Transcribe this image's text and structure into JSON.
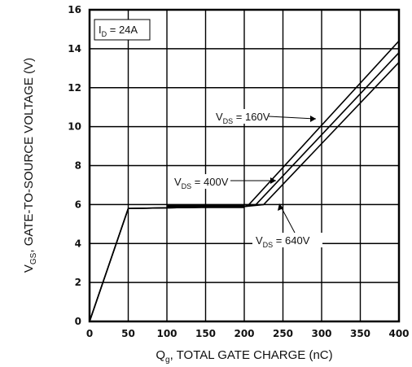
{
  "chart_data": {
    "type": "line",
    "xlabel": {
      "main": "Q",
      "sub": "g",
      "rest": ", TOTAL GATE CHARGE (nC)"
    },
    "ylabel": {
      "main": "V",
      "sub": "GS",
      "rest": ", GATE-TO-SOURCE  VOLTAGE (V)"
    },
    "xlim": [
      0,
      400
    ],
    "ylim": [
      0,
      16
    ],
    "xticks": [
      0,
      50,
      100,
      150,
      200,
      250,
      300,
      350,
      400
    ],
    "yticks": [
      0,
      2,
      4,
      6,
      8,
      10,
      12,
      14,
      16
    ],
    "grid": true,
    "condition": {
      "main": "I",
      "sub": "D",
      "rest": " = 24A"
    },
    "series": [
      {
        "name": {
          "main": "V",
          "sub": "DS",
          "rest": " = 160V"
        },
        "x": [
          0,
          50,
          200,
          206,
          400
        ],
        "y": [
          0,
          5.8,
          5.9,
          6.0,
          14.4
        ]
      },
      {
        "name": {
          "main": "V",
          "sub": "DS",
          "rest": " = 400V"
        },
        "x": [
          0,
          50,
          200,
          215,
          400
        ],
        "y": [
          0,
          5.8,
          5.9,
          6.0,
          13.8
        ]
      },
      {
        "name": {
          "main": "V",
          "sub": "DS",
          "rest": " = 640V"
        },
        "x": [
          0,
          50,
          200,
          225,
          400
        ],
        "y": [
          0,
          5.8,
          5.9,
          6.0,
          13.3
        ]
      }
    ]
  }
}
